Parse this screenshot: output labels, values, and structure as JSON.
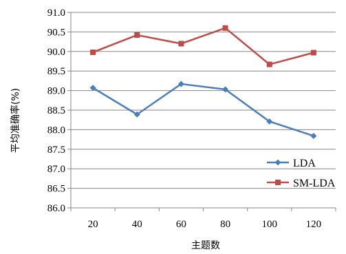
{
  "chart_data": {
    "type": "line",
    "xlabel": "主题数",
    "ylabel": "平均准确率(%)",
    "categories": [
      "20",
      "40",
      "60",
      "80",
      "100",
      "120"
    ],
    "ylim": [
      86.0,
      91.0
    ],
    "ytick_step": 0.5,
    "ytick_labels": [
      "86.0",
      "86.5",
      "87.0",
      "87.5",
      "88.0",
      "88.5",
      "89.0",
      "89.5",
      "90.0",
      "90.5",
      "91.0"
    ],
    "grid": true,
    "legend_position": "bottom-right",
    "series": [
      {
        "name": "LDA",
        "color": "#4a7ebb",
        "marker": "diamond",
        "values": [
          89.07,
          88.39,
          89.17,
          89.03,
          88.21,
          87.84
        ]
      },
      {
        "name": "SM-LDA",
        "color": "#be4b48",
        "marker": "square",
        "values": [
          89.98,
          90.42,
          90.2,
          90.6,
          89.67,
          89.97
        ]
      }
    ]
  }
}
